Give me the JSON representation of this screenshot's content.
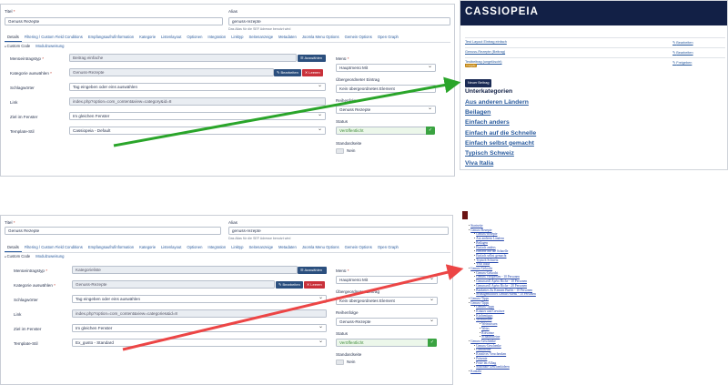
{
  "colors": {
    "green_arrow": "#2aa52a",
    "red_arrow": "#ec4545",
    "cassiopeia_header": "#122046",
    "primary_button": "#2b4f7e",
    "danger_button": "#c9313a",
    "status_green": "#3aa341"
  },
  "top_admin": {
    "title_label": "Titel",
    "title_value": "Genuss Rezepte",
    "alias_label": "Alias",
    "alias_value": "genuss-rezepte",
    "alias_hint": "Das Alias für die SEF Adresse benutzt wird",
    "tabs": [
      "Details",
      "Filtering / Custom Field Conditions",
      "Empfangsaufrufinformation",
      "Kategorie",
      "Listenlayout",
      "Optionen",
      "Integration",
      "Linktyp",
      "Seitenanzeige",
      "Metadaten",
      "Joomla Menu Options",
      "Gemein Options",
      "Open Graph"
    ],
    "subtabs": [
      "Custom Code",
      "Modulzuweisung"
    ],
    "fields": {
      "menuitem_type_label": "Menüeintragstyp",
      "menuitem_type_value": "Beitrag einfache",
      "select_button": "Auswählen",
      "category_label": "Kategorie auswählen",
      "category_value": "Genuss-Rezepte",
      "edit_button": "Bearbeiten",
      "clear_button": "Leeren",
      "tags_label": "Schlagwörter",
      "tags_value": "Tag eingeben oder eins auswählen",
      "link_label": "Link",
      "link_value": "index.php?option=com_content&view=category&id=8",
      "target_label": "Ziel im Fenster",
      "target_value": "Im gleichen Fenster",
      "template_label": "Template-Stil",
      "template_value": "Cassiopeia - Default"
    },
    "side": {
      "menu_label": "Menü",
      "menu_value": "Hauptmenü Mit",
      "parent_label": "Übergeordneter Eintrag",
      "parent_value": "Kein übergeordnetes Element",
      "order_label": "Reihenfolge",
      "order_value": "Genuss Rezepte",
      "status_label": "Status",
      "status_value": "Veröffentlicht",
      "home_label": "Standardseite",
      "home_value": "Nein"
    }
  },
  "site_top": {
    "brand": "CASSIOPEIA",
    "articles": [
      {
        "title": "Test Layout Eintrag einfach",
        "action": "Bearbeiten"
      },
      {
        "title": "Genuss-Rezepte (Beitrag)",
        "action": "Bearbeiten"
      },
      {
        "title": "Testbeitrag (ungelöscht)",
        "action": "Freigeben",
        "badge": "Freigabe"
      }
    ],
    "new_item_button": "Neuer Beitrag",
    "subcategories_heading": "Unterkategorien",
    "subcategories": [
      "Aus anderen Ländern",
      "Beilagen",
      "Einfach anders",
      "Einfach auf die Schnelle",
      "Einfach selbst gemacht",
      "Typisch Schweiz",
      "Viva Italia"
    ]
  },
  "bot_admin": {
    "title_label": "Titel",
    "title_value": "Genuss Rezepte",
    "alias_label": "Alias",
    "alias_value": "genuss-rezepte",
    "alias_hint": "Das Alias für die SEF Adresse benutzt wird",
    "tabs": [
      "Details",
      "Filtering / Custom Field Conditions",
      "Empfangsaufrufinformation",
      "Kategorie",
      "Listenlayout",
      "Optionen",
      "Integration",
      "Linktyp",
      "Seitenanzeige",
      "Metadaten",
      "Joomla Menu Options",
      "Gemein Options",
      "Open Graph"
    ],
    "subtabs": [
      "Custom Code",
      "Modulzuweisung"
    ],
    "fields": {
      "menuitem_type_label": "Menüeintragstyp",
      "menuitem_type_value": "Kategorieliste",
      "select_button": "Auswählen",
      "category_label": "Kategorie auswählen",
      "category_value": "Genuss-Rezepte",
      "edit_button": "Bearbeiten",
      "clear_button": "Leeren",
      "tags_label": "Schlagwörter",
      "tags_value": "Tag eingeben oder eins auswählen",
      "link_label": "Link",
      "link_value": "index.php?option=com_content&view=categories&id=8",
      "target_label": "Ziel im Fenster",
      "target_value": "Im gleichen Fenster",
      "template_label": "Template-Stil",
      "template_value": "Ex_gusto - Standard"
    },
    "side": {
      "menu_label": "Menü",
      "menu_value": "Hauptmenü Mit",
      "parent_label": "Übergeordneter Eintrag",
      "parent_value": "Kein übergeordnetes Element",
      "order_label": "Reihenfolge",
      "order_value": "Genuss-Rezepte",
      "status_label": "Status",
      "status_value": "Veröffentlicht",
      "home_label": "Standardseite",
      "home_value": "Nein"
    }
  },
  "site_bot": {
    "tree": [
      {
        "level": 1,
        "text": "Startseite"
      },
      {
        "level": 1,
        "text": "Genuss-Rezepte"
      },
      {
        "level": 2,
        "text": "Genuss-Rezepte"
      },
      {
        "level": 2,
        "text": "Aus anderen Ländern"
      },
      {
        "level": 2,
        "text": "Beilagen"
      },
      {
        "level": 2,
        "text": "Einfach anders"
      },
      {
        "level": 2,
        "text": "Einfach auf die Schnelle"
      },
      {
        "level": 2,
        "text": "Einfach selbst gemacht"
      },
      {
        "level": 2,
        "text": "Typisch Schweiz"
      },
      {
        "level": 2,
        "text": "Viva Italia"
      },
      {
        "level": 1,
        "text": "Genuss-Gekocht"
      },
      {
        "level": 2,
        "text": "Genuss-Gekocht"
      },
      {
        "level": 2,
        "text": "Genuss Vorspeisen - 10 Personen"
      },
      {
        "level": 2,
        "text": "Genussvoll Apéro Riche - 10 Personen"
      },
      {
        "level": 2,
        "text": "Genussvoll Apéro Riche - 20 Personen"
      },
      {
        "level": 2,
        "text": "Bankettes Zu Kennen Buffet - 10 Personen"
      },
      {
        "level": 2,
        "text": "Selbstgemachtes Genuss-Menü - 10 Personen"
      },
      {
        "level": 1,
        "text": "Genuss-Tipps"
      },
      {
        "level": 1,
        "text": "Genuss-Tipps"
      },
      {
        "level": 2,
        "text": "Genuss-Tipps"
      },
      {
        "level": 2,
        "text": "Kräuter und Gewürze"
      },
      {
        "level": 2,
        "text": "Küchentipps"
      },
      {
        "level": 2,
        "text": "Weinwissen"
      },
      {
        "level": 3,
        "text": "Weinwissen"
      },
      {
        "level": 3,
        "text": "Weiss"
      },
      {
        "level": 3,
        "text": "Rotweine"
      },
      {
        "level": 3,
        "text": "Schaumweine"
      },
      {
        "level": 1,
        "text": "Genuss-Geschenke"
      },
      {
        "level": 2,
        "text": "Genuss-Geschenke"
      },
      {
        "level": 2,
        "text": "Gutscheine"
      },
      {
        "level": 2,
        "text": "Kreatives Verschenken"
      },
      {
        "level": 2,
        "text": "Präsente"
      },
      {
        "level": 2,
        "text": "Feste im Alltag"
      },
      {
        "level": 2,
        "text": "Saisonale Geschenkideen"
      },
      {
        "level": 1,
        "text": "Kontakt"
      }
    ]
  }
}
